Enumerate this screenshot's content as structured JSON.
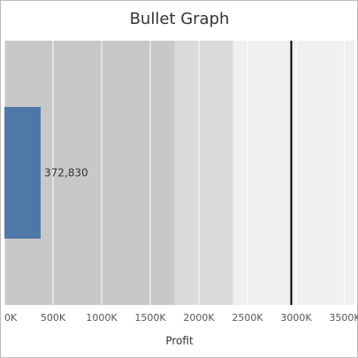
{
  "chart_data": {
    "type": "bullet",
    "title": "Bullet Graph",
    "x_label": "Profit",
    "values": [
      372830
    ],
    "value_labels": [
      "372,830"
    ],
    "color": "#4e79a7",
    "ranges": [
      1750000,
      2350000,
      3600000
    ],
    "range_colors": [
      "#c8c8c8",
      "#dadada",
      "#f0f0f0"
    ],
    "target": 2950000,
    "target_color": "#000000",
    "xlim": [
      0,
      3600000
    ],
    "xticks": [
      {
        "value": 0,
        "label": "0K"
      },
      {
        "value": 500000,
        "label": "500K"
      },
      {
        "value": 1000000,
        "label": "1000K"
      },
      {
        "value": 1500000,
        "label": "1500K"
      },
      {
        "value": 2000000,
        "label": "2000K"
      },
      {
        "value": 2500000,
        "label": "2500K"
      },
      {
        "value": 3000000,
        "label": "3000K"
      },
      {
        "value": 3500000,
        "label": "3500K"
      }
    ],
    "grid": true
  }
}
